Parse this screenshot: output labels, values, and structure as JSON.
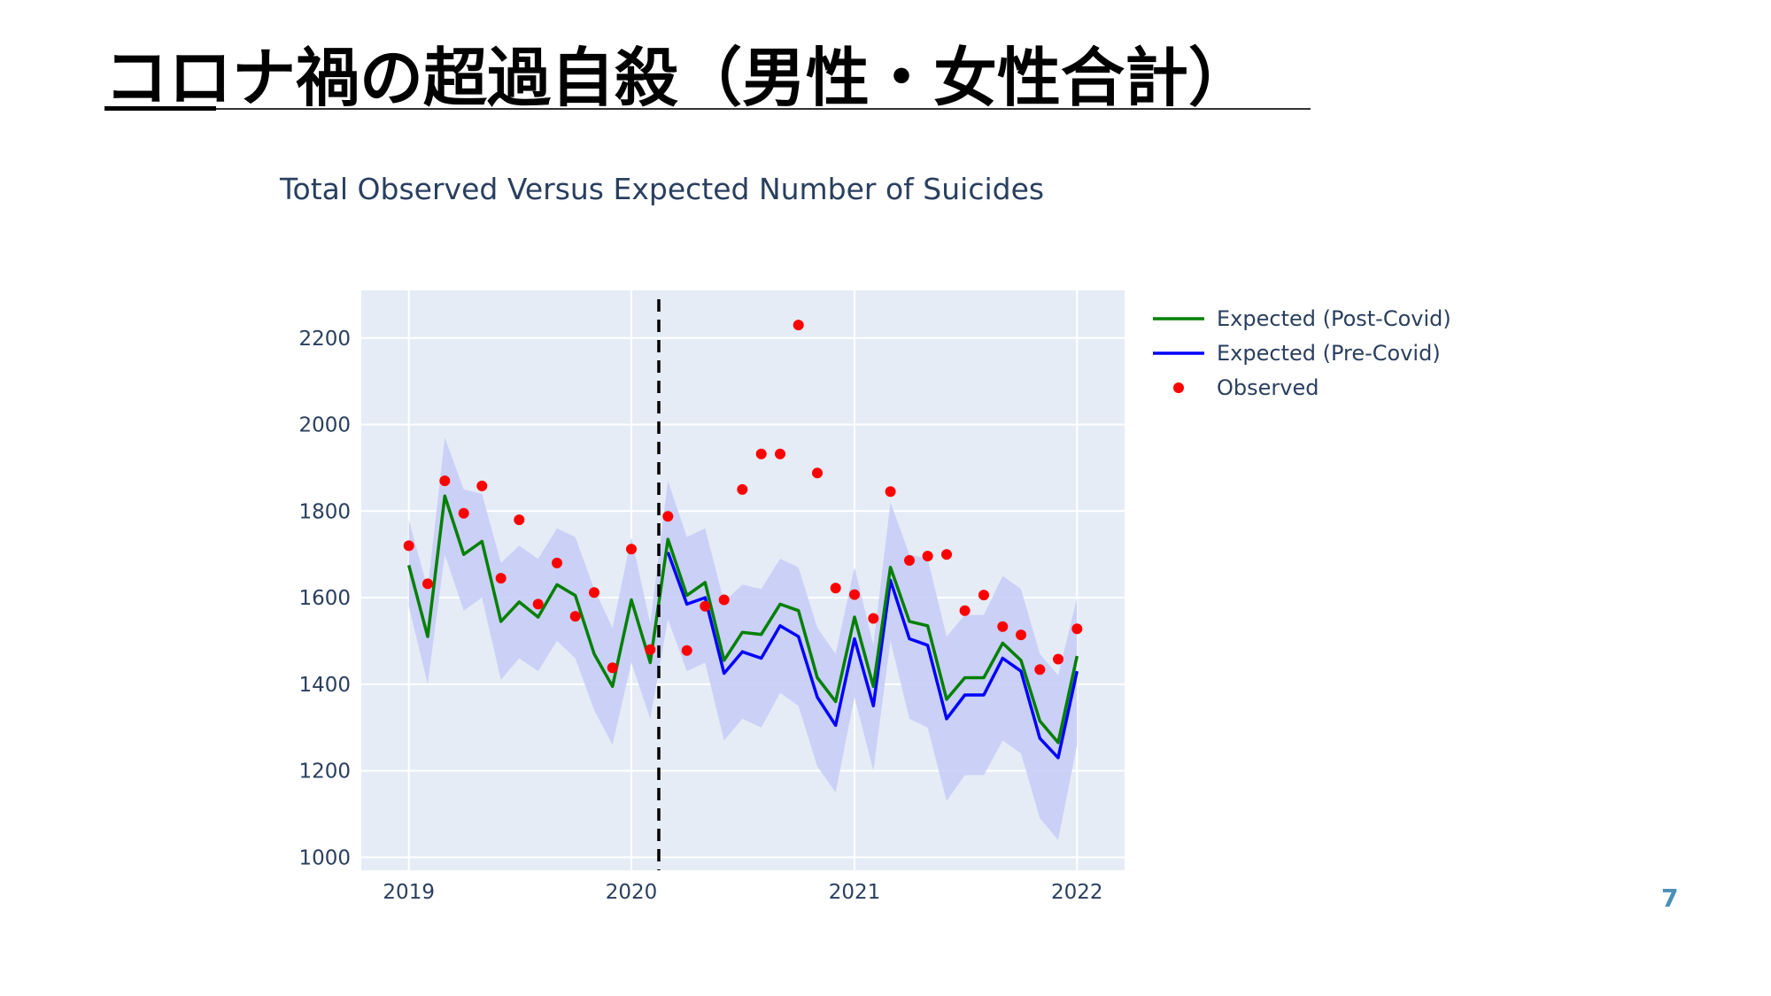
{
  "slide": {
    "title": "コロナ禍の超過自殺（男性・女性合計）",
    "page_number": "7"
  },
  "colors": {
    "plot_background": "#E5ECF6",
    "band": "#c8cdf7",
    "post_covid": "#008000",
    "pre_covid": "#0000ff",
    "observed": "#ff0000",
    "text": "#2a3f5f",
    "divider": "#000000"
  },
  "chart_data": {
    "type": "line",
    "title": "Total Observed Versus Expected Number of Suicides",
    "xlabel": "",
    "ylabel": "",
    "x_ticks": [
      "2019",
      "2020",
      "2021",
      "2022"
    ],
    "y_ticks": [
      "1000",
      "1200",
      "1400",
      "1600",
      "1800",
      "2000",
      "2200"
    ],
    "xlim": [
      "2018-10-15",
      "2022-03-20"
    ],
    "ylim": [
      970,
      2310
    ],
    "grid": true,
    "legend_position": "top-right",
    "covid_start_line": "2020-02-15",
    "dates": [
      "2019-01",
      "2019-02",
      "2019-03",
      "2019-04",
      "2019-05",
      "2019-06",
      "2019-07",
      "2019-08",
      "2019-09",
      "2019-10",
      "2019-11",
      "2019-12",
      "2020-01",
      "2020-02",
      "2020-03",
      "2020-04",
      "2020-05",
      "2020-06",
      "2020-07",
      "2020-08",
      "2020-09",
      "2020-10",
      "2020-11",
      "2020-12",
      "2021-01",
      "2021-02",
      "2021-03",
      "2021-04",
      "2021-05",
      "2021-06",
      "2021-07",
      "2021-08",
      "2021-09",
      "2021-10",
      "2021-11",
      "2021-12",
      "2022-01"
    ],
    "band": {
      "upper": [
        1780,
        1620,
        1970,
        1850,
        1840,
        1680,
        1720,
        1690,
        1760,
        1740,
        1620,
        1530,
        1740,
        1540,
        1870,
        1740,
        1760,
        1590,
        1630,
        1620,
        1690,
        1670,
        1530,
        1470,
        1670,
        1490,
        1820,
        1700,
        1690,
        1510,
        1560,
        1560,
        1650,
        1620,
        1470,
        1420,
        1600
      ],
      "lower": [
        1580,
        1400,
        1700,
        1570,
        1600,
        1410,
        1460,
        1430,
        1500,
        1460,
        1340,
        1260,
        1450,
        1320,
        1550,
        1430,
        1450,
        1270,
        1320,
        1300,
        1380,
        1350,
        1210,
        1150,
        1370,
        1200,
        1500,
        1320,
        1300,
        1130,
        1190,
        1190,
        1270,
        1240,
        1090,
        1040,
        1260
      ]
    },
    "series": [
      {
        "name": "Expected (Post-Covid)",
        "mode": "line",
        "values": [
          1675,
          1510,
          1835,
          1700,
          1730,
          1545,
          1590,
          1555,
          1630,
          1605,
          1470,
          1395,
          1595,
          1450,
          1735,
          1605,
          1635,
          1455,
          1520,
          1515,
          1585,
          1570,
          1415,
          1360,
          1555,
          1395,
          1670,
          1545,
          1535,
          1365,
          1415,
          1415,
          1495,
          1455,
          1315,
          1265,
          1465
        ]
      },
      {
        "name": "Expected (Pre-Covid)",
        "mode": "line",
        "values": [
          null,
          null,
          null,
          null,
          null,
          null,
          null,
          null,
          null,
          null,
          null,
          null,
          null,
          null,
          1705,
          1585,
          1600,
          1425,
          1475,
          1460,
          1535,
          1510,
          1370,
          1305,
          1505,
          1350,
          1640,
          1505,
          1490,
          1320,
          1375,
          1375,
          1460,
          1430,
          1275,
          1230,
          1430
        ]
      },
      {
        "name": "Observed",
        "mode": "markers",
        "values": [
          1720,
          1632,
          1870,
          1795,
          1858,
          1645,
          1780,
          1585,
          1680,
          1557,
          1612,
          1438,
          1712,
          1480,
          1788,
          1478,
          1580,
          1595,
          1850,
          1932,
          1932,
          2230,
          1888,
          1622,
          1607,
          1552,
          1845,
          1686,
          1696,
          1700,
          1570,
          1606,
          1533,
          1514,
          1434,
          1458,
          1528
        ]
      }
    ]
  }
}
